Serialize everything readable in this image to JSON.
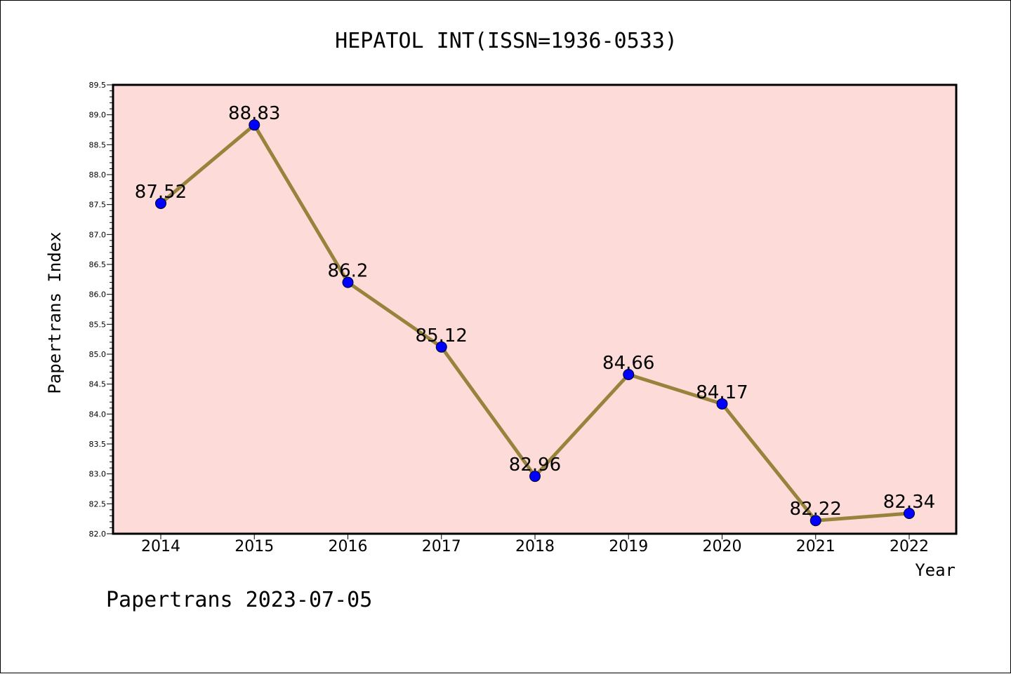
{
  "chart_data": {
    "type": "line",
    "title": "HEPATOL INT(ISSN=1936-0533)",
    "xlabel": "Year",
    "ylabel": "Papertrans Index",
    "categories": [
      "2014",
      "2015",
      "2016",
      "2017",
      "2018",
      "2019",
      "2020",
      "2021",
      "2022"
    ],
    "series": [
      {
        "values": [
          87.52,
          88.83,
          86.2,
          85.12,
          82.96,
          84.66,
          84.17,
          82.22,
          82.34
        ],
        "labels": [
          "87.52",
          "88.83",
          "86.2",
          "85.12",
          "82.96",
          "84.66",
          "84.17",
          "82.22",
          "82.34"
        ]
      }
    ],
    "ylim": [
      82.0,
      89.5
    ],
    "yticks": [
      "82.0",
      "82.5",
      "83.0",
      "83.5",
      "84.0",
      "84.5",
      "85.0",
      "85.5",
      "86.0",
      "86.5",
      "87.0",
      "87.5",
      "88.0",
      "88.5",
      "89.0",
      "89.5"
    ],
    "grid": false,
    "colors": {
      "plot_background": "#fddbd8",
      "line": "#98833c",
      "marker": "#0000ff",
      "axes": "#000000"
    }
  },
  "footer": "Papertrans 2023-07-05"
}
